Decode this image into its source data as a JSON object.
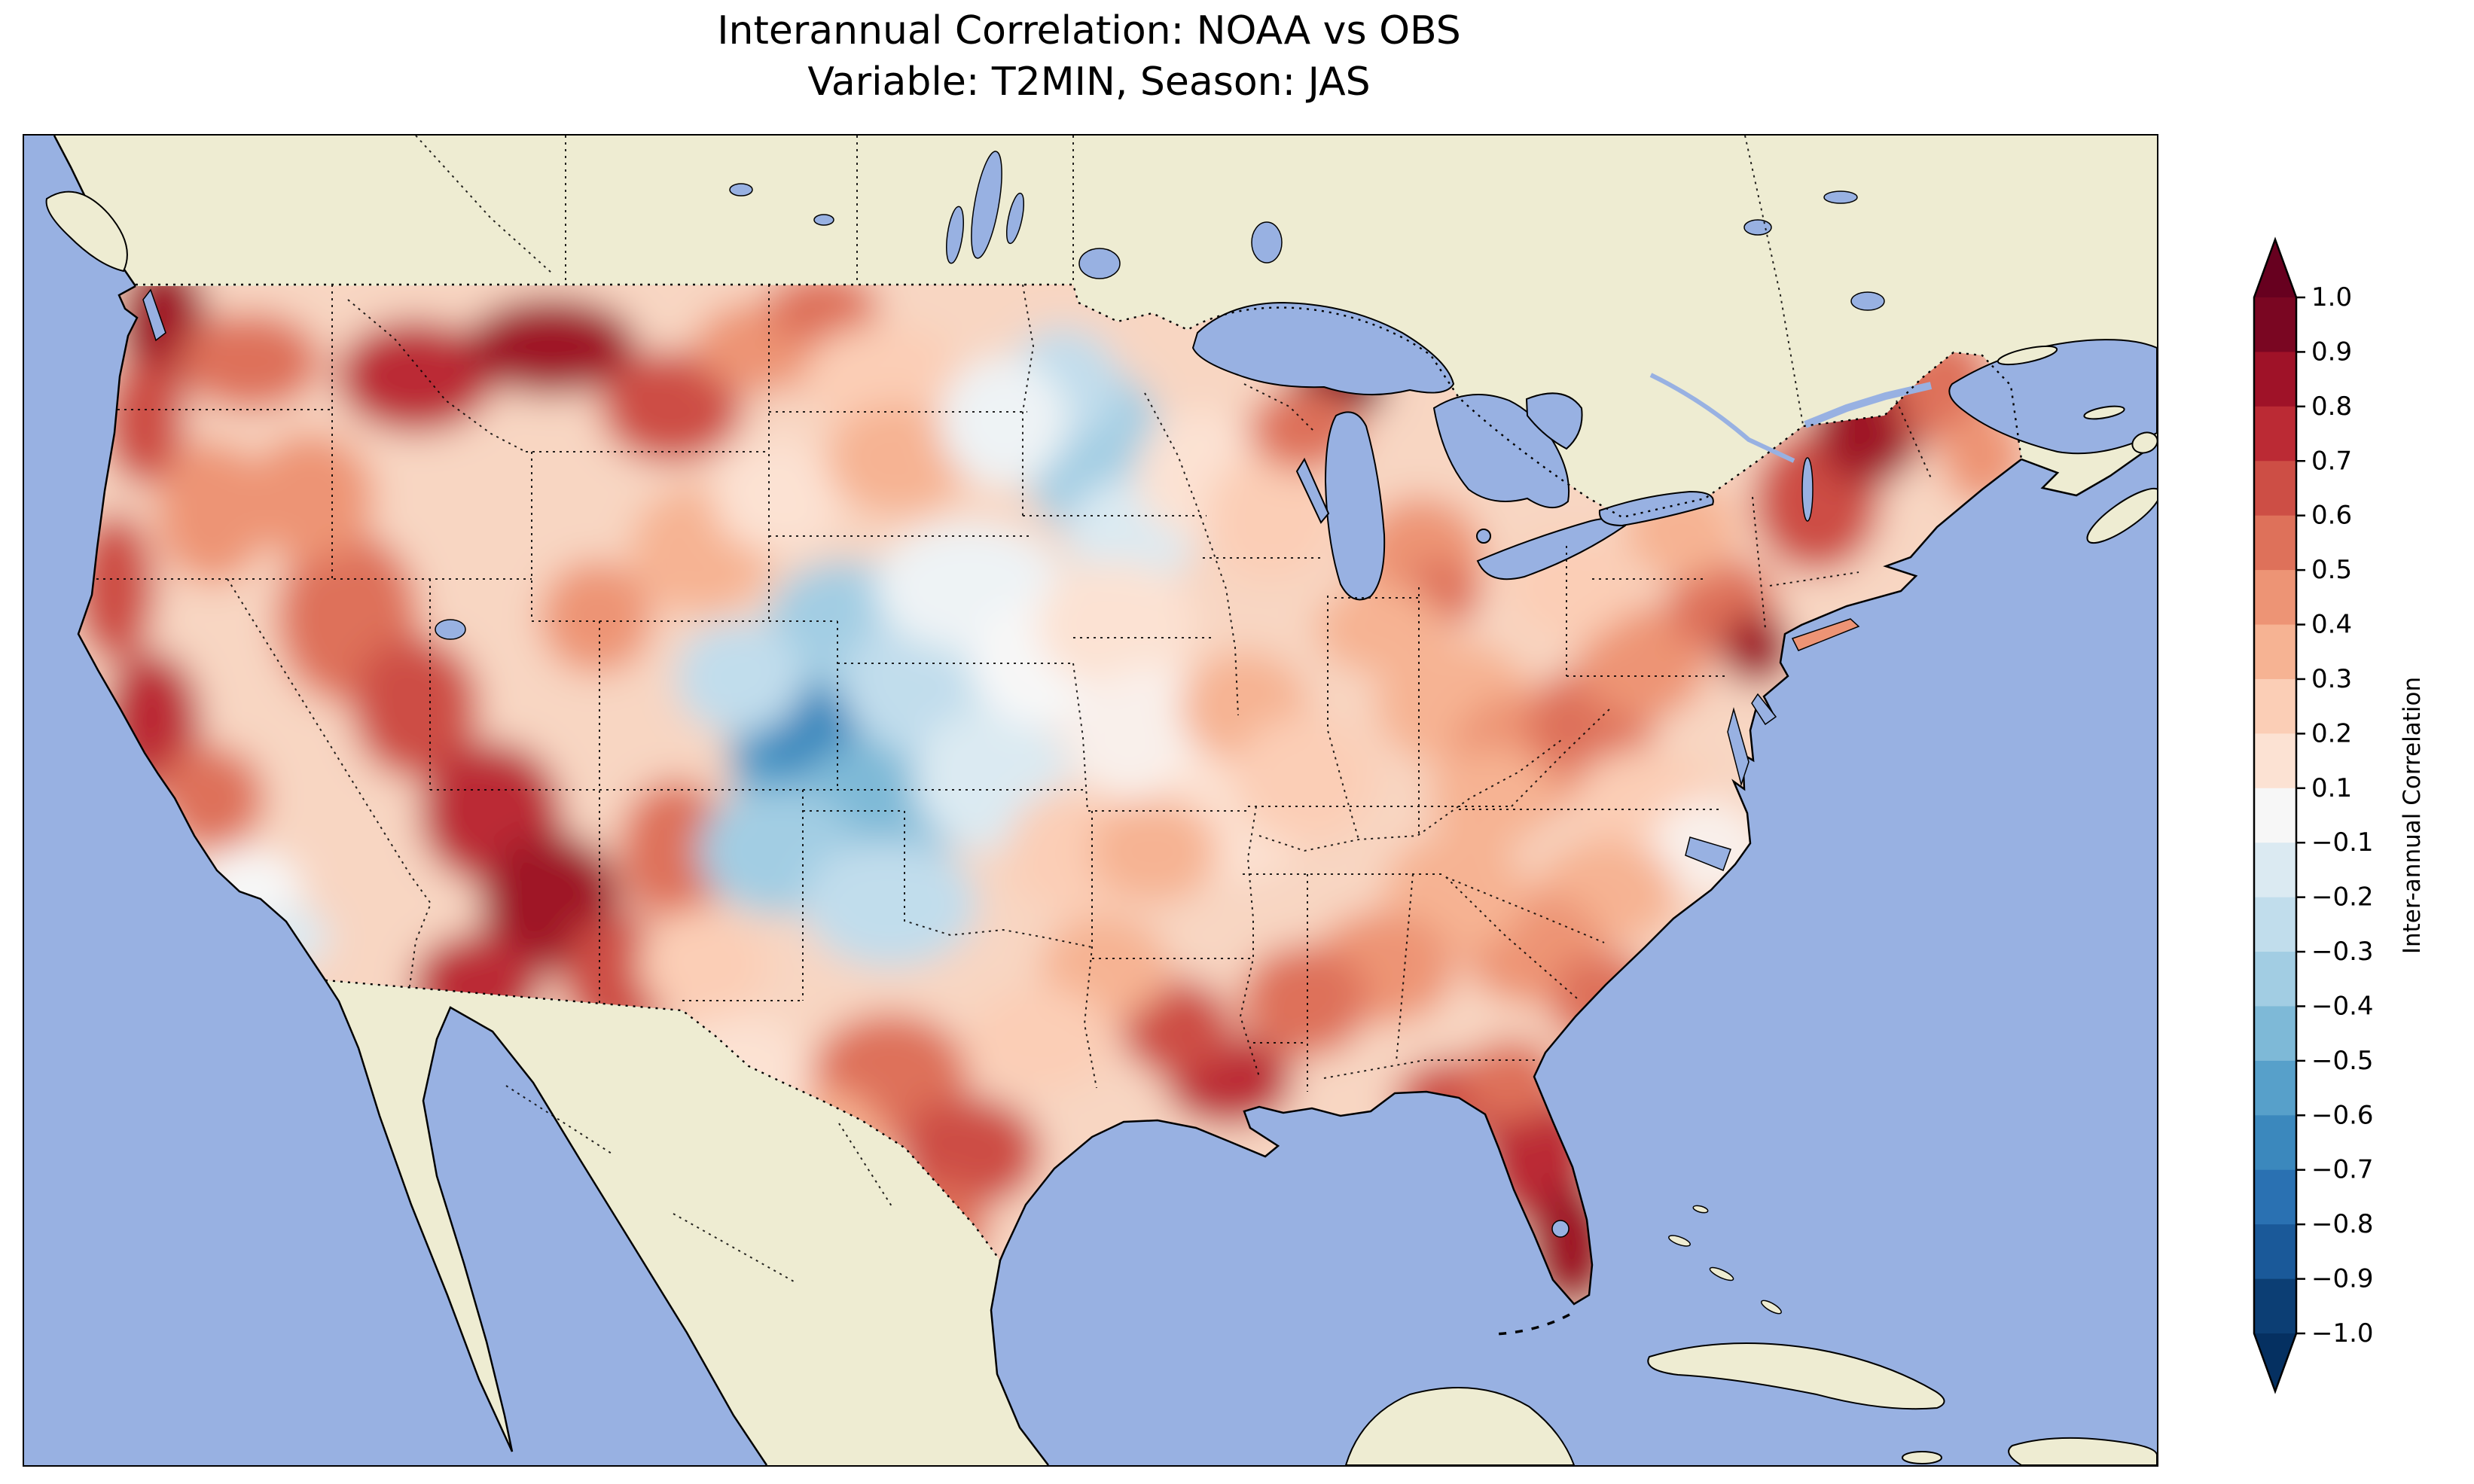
{
  "title": {
    "line1": "Interannual Correlation: NOAA vs OBS",
    "line2": "Variable: T2MIN, Season: JAS"
  },
  "colors": {
    "ocean": "#98b1e2",
    "land": "#eeecd2",
    "field_base": "#f8d6c2",
    "coastline": "#000000",
    "background": "#ffffff"
  },
  "colorbar": {
    "label": "Inter-annual Correlation",
    "tick_labels": [
      "1.0",
      "0.9",
      "0.8",
      "0.7",
      "0.6",
      "0.5",
      "0.4",
      "0.3",
      "0.2",
      "0.1",
      "−0.1",
      "−0.2",
      "−0.3",
      "−0.4",
      "−0.5",
      "−0.6",
      "−0.7",
      "−0.8",
      "−0.9",
      "−1.0"
    ],
    "band_colors": [
      "#7a0622",
      "#9f1228",
      "#bb2a34",
      "#cd4e45",
      "#de715a",
      "#ed9475",
      "#f6b393",
      "#fbceb6",
      "#fce2d3",
      "#f7f7f7",
      "#dbeaf2",
      "#c1ddec",
      "#a2cde3",
      "#7eb9d7",
      "#57a0ca",
      "#3b88bd",
      "#2a71b2",
      "#1a5999",
      "#0c3e74"
    ],
    "extend_over_color": "#67001f",
    "extend_under_color": "#053061"
  },
  "chart_data": {
    "type": "heatmap",
    "subtype": "filled_contour_map",
    "title": "Interannual Correlation: NOAA vs OBS",
    "subtitle": "Variable: T2MIN, Season: JAS",
    "comparison": [
      "NOAA",
      "OBS"
    ],
    "variable": "T2MIN",
    "season": "JAS",
    "region": "Contiguous United States",
    "colormap": "RdBu_r",
    "value_range": [
      -1.0,
      1.0
    ],
    "contour_levels": [
      -1.0,
      -0.9,
      -0.8,
      -0.7,
      -0.6,
      -0.5,
      -0.4,
      -0.3,
      -0.2,
      -0.1,
      0.1,
      0.2,
      0.3,
      0.4,
      0.5,
      0.6,
      0.7,
      0.8,
      0.9,
      1.0
    ],
    "colorbar_label": "Inter-annual Correlation",
    "legend_position": "right",
    "regional_values": [
      {
        "region": "Pacific Northwest coast (WA/OR)",
        "correlation": 0.7
      },
      {
        "region": "Idaho / western Montana",
        "correlation": 0.75
      },
      {
        "region": "Northern California coast",
        "correlation": 0.7
      },
      {
        "region": "Great Basin (NV/UT)",
        "correlation": 0.55
      },
      {
        "region": "Four Corners / Arizona / New Mexico",
        "correlation": 0.75
      },
      {
        "region": "Eastern Colorado / western Kansas",
        "correlation": -0.55
      },
      {
        "region": "Central High Plains (NE/WY fringe)",
        "correlation": -0.2
      },
      {
        "region": "Northern Minnesota",
        "correlation": -0.3
      },
      {
        "region": "Upper Michigan (Lake Superior shore)",
        "correlation": 0.9
      },
      {
        "region": "Corn Belt (IA/IL/MO)",
        "correlation": 0.1
      },
      {
        "region": "Ohio Valley / Appalachians",
        "correlation": 0.4
      },
      {
        "region": "New England",
        "correlation": 0.7
      },
      {
        "region": "Mid-Atlantic (NJ/DE)",
        "correlation": 0.7
      },
      {
        "region": "Carolinas coastal plain",
        "correlation": 0.15
      },
      {
        "region": "Deep South (GA/AL/MS)",
        "correlation": 0.5
      },
      {
        "region": "Louisiana Gulf Coast",
        "correlation": 0.7
      },
      {
        "region": "Florida peninsula",
        "correlation": 0.8
      },
      {
        "region": "Central Texas",
        "correlation": 0.5
      },
      {
        "region": "West Texas",
        "correlation": 0.15
      },
      {
        "region": "Texas Gulf Coast",
        "correlation": 0.6
      }
    ],
    "field_blobs": [
      [
        185,
        255,
        60,
        95,
        "#9f1228"
      ],
      [
        160,
        380,
        55,
        85,
        "#cd4e45"
      ],
      [
        300,
        300,
        95,
        65,
        "#de715a"
      ],
      [
        250,
        500,
        75,
        95,
        "#ed9475"
      ],
      [
        120,
        600,
        55,
        100,
        "#cd4e45"
      ],
      [
        170,
        780,
        65,
        95,
        "#bb2a34"
      ],
      [
        245,
        880,
        75,
        70,
        "#de715a"
      ],
      [
        150,
        945,
        50,
        60,
        "#fce2d3"
      ],
      [
        300,
        1000,
        70,
        50,
        "#f7f7f7"
      ],
      [
        355,
        1065,
        50,
        40,
        "#dbeaf2"
      ],
      [
        430,
        640,
        95,
        115,
        "#de715a"
      ],
      [
        380,
        480,
        85,
        85,
        "#ed9475"
      ],
      [
        520,
        760,
        85,
        95,
        "#cd4e45"
      ],
      [
        620,
        900,
        95,
        95,
        "#bb2a34"
      ],
      [
        700,
        1020,
        95,
        95,
        "#9f1228"
      ],
      [
        600,
        1130,
        85,
        70,
        "#bb2a34"
      ],
      [
        790,
        1120,
        75,
        85,
        "#cd4e45"
      ],
      [
        865,
        950,
        75,
        95,
        "#de715a"
      ],
      [
        520,
        320,
        105,
        75,
        "#bb2a34"
      ],
      [
        700,
        280,
        115,
        65,
        "#9f1228"
      ],
      [
        860,
        360,
        95,
        75,
        "#cd4e45"
      ],
      [
        985,
        280,
        95,
        60,
        "#ed9475"
      ],
      [
        1060,
        230,
        75,
        50,
        "#de715a"
      ],
      [
        1140,
        320,
        105,
        70,
        "#fbceb6"
      ],
      [
        900,
        550,
        95,
        85,
        "#f6b393"
      ],
      [
        1000,
        480,
        85,
        75,
        "#fce2d3"
      ],
      [
        760,
        640,
        75,
        75,
        "#ed9475"
      ],
      [
        1160,
        430,
        95,
        75,
        "#f6b393"
      ],
      [
        1060,
        820,
        125,
        115,
        "#57a0ca"
      ],
      [
        1035,
        780,
        70,
        70,
        "#3b88bd"
      ],
      [
        1130,
        900,
        115,
        95,
        "#7eb9d7"
      ],
      [
        1000,
        950,
        105,
        85,
        "#a2cde3"
      ],
      [
        1150,
        1020,
        115,
        85,
        "#c1ddec"
      ],
      [
        1090,
        650,
        105,
        85,
        "#a2cde3"
      ],
      [
        1200,
        730,
        115,
        95,
        "#c1ddec"
      ],
      [
        1285,
        855,
        105,
        95,
        "#dbeaf2"
      ],
      [
        950,
        720,
        85,
        75,
        "#c1ddec"
      ],
      [
        1255,
        600,
        125,
        85,
        "#eef3f5"
      ],
      [
        1360,
        700,
        105,
        85,
        "#f7f7f7"
      ],
      [
        1420,
        420,
        95,
        115,
        "#a2cde3"
      ],
      [
        1380,
        330,
        75,
        75,
        "#c1ddec"
      ],
      [
        1470,
        530,
        85,
        75,
        "#dbeaf2"
      ],
      [
        1300,
        380,
        85,
        85,
        "#eef3f5"
      ],
      [
        1560,
        450,
        85,
        85,
        "#fce2d3"
      ],
      [
        1655,
        505,
        85,
        85,
        "#fbceb6"
      ],
      [
        1745,
        330,
        65,
        48,
        "#7a0622"
      ],
      [
        1700,
        390,
        75,
        55,
        "#de715a"
      ],
      [
        1855,
        565,
        85,
        85,
        "#ed9475"
      ],
      [
        1880,
        610,
        55,
        45,
        "#de715a"
      ],
      [
        1800,
        655,
        85,
        60,
        "#f6b393"
      ],
      [
        1450,
        650,
        105,
        85,
        "#fce2d3"
      ],
      [
        1500,
        800,
        115,
        95,
        "#f9f0eb"
      ],
      [
        1600,
        905,
        105,
        85,
        "#fce2d3"
      ],
      [
        1400,
        950,
        95,
        85,
        "#fbceb6"
      ],
      [
        1620,
        760,
        85,
        75,
        "#f6b393"
      ],
      [
        1700,
        855,
        95,
        85,
        "#fbceb6"
      ],
      [
        1500,
        950,
        85,
        70,
        "#f6b393"
      ],
      [
        1900,
        755,
        105,
        85,
        "#f6b393"
      ],
      [
        1990,
        825,
        95,
        85,
        "#ed9475"
      ],
      [
        2080,
        780,
        85,
        75,
        "#de715a"
      ],
      [
        2150,
        700,
        85,
        75,
        "#ed9475"
      ],
      [
        2255,
        625,
        75,
        65,
        "#de715a"
      ],
      [
        2300,
        682,
        48,
        48,
        "#9f1228"
      ],
      [
        2380,
        485,
        85,
        95,
        "#cd4e45"
      ],
      [
        2450,
        380,
        75,
        85,
        "#9f1228"
      ],
      [
        2550,
        335,
        65,
        75,
        "#de715a"
      ],
      [
        2600,
        425,
        55,
        65,
        "#ed9475"
      ],
      [
        2200,
        525,
        75,
        65,
        "#f6b393"
      ],
      [
        2055,
        600,
        85,
        70,
        "#fbceb6"
      ],
      [
        1950,
        880,
        85,
        65,
        "#f6b393"
      ],
      [
        2150,
        885,
        95,
        70,
        "#fbceb6"
      ],
      [
        2235,
        950,
        80,
        60,
        "#f9f0eb"
      ],
      [
        2100,
        1005,
        95,
        70,
        "#f6b393"
      ],
      [
        2005,
        1080,
        95,
        75,
        "#ed9475"
      ],
      [
        2100,
        1150,
        75,
        65,
        "#de715a"
      ],
      [
        1900,
        1005,
        95,
        80,
        "#f6b393"
      ],
      [
        1805,
        1105,
        95,
        75,
        "#ed9475"
      ],
      [
        1700,
        1150,
        85,
        75,
        "#de715a"
      ],
      [
        1600,
        1255,
        85,
        60,
        "#bb2a34"
      ],
      [
        1530,
        1185,
        75,
        65,
        "#cd4e45"
      ],
      [
        1435,
        1105,
        85,
        70,
        "#f6b393"
      ],
      [
        1350,
        1200,
        95,
        70,
        "#fbceb6"
      ],
      [
        1905,
        1280,
        85,
        55,
        "#cd4e45"
      ],
      [
        2010,
        1355,
        75,
        95,
        "#bb2a34"
      ],
      [
        2055,
        1475,
        60,
        85,
        "#9f1228"
      ],
      [
        1975,
        1255,
        65,
        55,
        "#de715a"
      ],
      [
        2230,
        930,
        60,
        50,
        "#f9f0eb"
      ],
      [
        1150,
        1250,
        105,
        85,
        "#de715a"
      ],
      [
        1255,
        1350,
        95,
        75,
        "#cd4e45"
      ],
      [
        1205,
        1450,
        75,
        60,
        "#de715a"
      ],
      [
        1050,
        1350,
        95,
        85,
        "#f6b393"
      ],
      [
        950,
        1255,
        95,
        85,
        "#fce2d3"
      ],
      [
        900,
        1100,
        85,
        75,
        "#fbceb6"
      ]
    ]
  }
}
